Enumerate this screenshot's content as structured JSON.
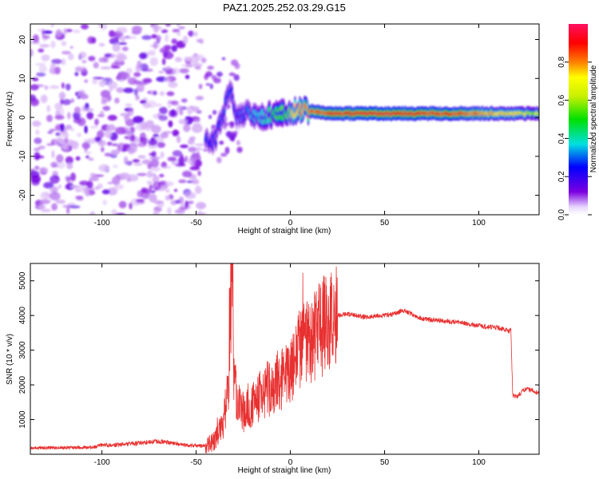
{
  "chart_data": [
    {
      "type": "heatmap",
      "title": "PAZ1.2025.252.03.29.G15",
      "xlabel": "Height of straight line (km)",
      "ylabel": "Frequency (Hz)",
      "xlim": [
        -138,
        132
      ],
      "ylim": [
        -25,
        24
      ],
      "xticks": [
        "-100",
        "-50",
        "0",
        "50",
        "100"
      ],
      "xtick_values": [
        -100,
        -50,
        0,
        50,
        100
      ],
      "yticks": [
        "20",
        "10",
        "0",
        "-10",
        "-20"
      ],
      "ytick_values": [
        20,
        10,
        0,
        -10,
        -20
      ],
      "colorbar": {
        "label": "Normalized spectral amplitude",
        "range": [
          0,
          1
        ],
        "ticks": [
          "0.0",
          "0.2",
          "0.4",
          "0.6",
          "0.8"
        ],
        "tick_values": [
          0.0,
          0.2,
          0.4,
          0.6,
          0.8
        ],
        "colors": [
          "#ffffff",
          "#7b00e0",
          "#0000ff",
          "#00e0e0",
          "#00e000",
          "#ffff00",
          "#ff8000",
          "#ff0000",
          "#ff1060"
        ]
      },
      "ridge": [
        {
          "x": -45,
          "y": -6,
          "amp": 0.3
        },
        {
          "x": -40,
          "y": -6,
          "amp": 0.25
        },
        {
          "x": -32,
          "y": 7,
          "amp": 0.3
        },
        {
          "x": -28,
          "y": 0,
          "amp": 0.25
        },
        {
          "x": -22,
          "y": 1,
          "amp": 0.35
        },
        {
          "x": -15,
          "y": 0,
          "amp": 0.4
        },
        {
          "x": -8,
          "y": 1,
          "amp": 0.5
        },
        {
          "x": 0,
          "y": 1,
          "amp": 0.6
        },
        {
          "x": 5,
          "y": 2,
          "amp": 0.75
        },
        {
          "x": 20,
          "y": 1,
          "amp": 0.9
        },
        {
          "x": 50,
          "y": 1,
          "amp": 0.95
        },
        {
          "x": 90,
          "y": 1,
          "amp": 0.85
        },
        {
          "x": 115,
          "y": 1,
          "amp": 0.7
        },
        {
          "x": 130,
          "y": 1,
          "amp": 0.6
        }
      ]
    },
    {
      "type": "line",
      "xlabel": "Height of straight line (km)",
      "ylabel": "SNR (10 * v/v)",
      "xlim": [
        -138,
        132
      ],
      "ylim": [
        0,
        5500
      ],
      "xticks": [
        "-100",
        "-50",
        "0",
        "50",
        "100"
      ],
      "xtick_values": [
        -100,
        -50,
        0,
        50,
        100
      ],
      "yticks": [
        "1000",
        "2000",
        "3000",
        "4000",
        "5000"
      ],
      "ytick_values": [
        1000,
        2000,
        3000,
        4000,
        5000
      ],
      "color": "#e83030",
      "series": [
        {
          "name": "SNR",
          "x": [
            -138,
            -120,
            -105,
            -100,
            -95,
            -80,
            -70,
            -55,
            -45,
            -40,
            -36,
            -33,
            -31,
            -30,
            -28,
            -25,
            -20,
            -15,
            -10,
            -5,
            0,
            5,
            10,
            15,
            20,
            25,
            30,
            40,
            50,
            55,
            60,
            70,
            80,
            90,
            100,
            110,
            116,
            117,
            118,
            120,
            125,
            132
          ],
          "y": [
            180,
            190,
            200,
            270,
            260,
            320,
            380,
            250,
            240,
            400,
            800,
            1800,
            5400,
            2000,
            1600,
            1200,
            1400,
            1700,
            1900,
            2100,
            2400,
            3000,
            3300,
            3600,
            3800,
            4000,
            4050,
            3950,
            4000,
            4050,
            4150,
            3900,
            3850,
            3800,
            3700,
            3650,
            3550,
            3600,
            1700,
            1650,
            1900,
            1750
          ]
        }
      ]
    }
  ]
}
